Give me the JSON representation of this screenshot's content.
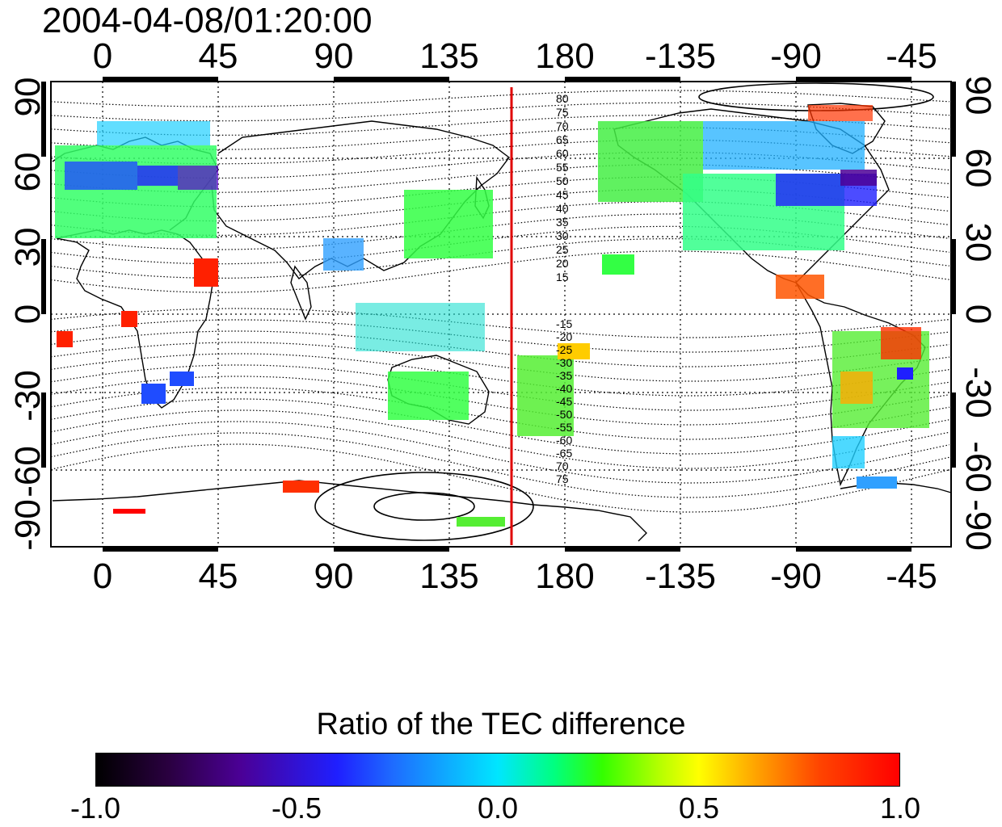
{
  "timestamp": "2004-04-08/01:20:00",
  "lon_ticks_top": [
    "0",
    "45",
    "90",
    "135",
    "180",
    "-135",
    "-90",
    "-45"
  ],
  "lon_ticks_bottom": [
    "0",
    "45",
    "90",
    "135",
    "180",
    "-135",
    "-90",
    "-45"
  ],
  "lat_ticks_left": [
    "90",
    "60",
    "30",
    "0",
    "-30",
    "-60",
    "-90"
  ],
  "lat_ticks_right": [
    "90",
    "60",
    "30",
    "0",
    "-30",
    "-60",
    "-90"
  ],
  "contour_labels_north": [
    "80",
    "75",
    "70",
    "65",
    "60",
    "55",
    "50",
    "45",
    "40",
    "35",
    "30",
    "25",
    "20",
    "15"
  ],
  "contour_labels_south": [
    "-15",
    "-20",
    "-25",
    "-30",
    "-35",
    "-40",
    "-45",
    "-50",
    "-55",
    "-60",
    "-65",
    "70",
    "75"
  ],
  "colorbar": {
    "title": "Ratio of the TEC difference",
    "labels": [
      "-1.0",
      "-0.5",
      "0.0",
      "0.5",
      "1.0"
    ]
  },
  "marker_line_color": "#e00000"
}
